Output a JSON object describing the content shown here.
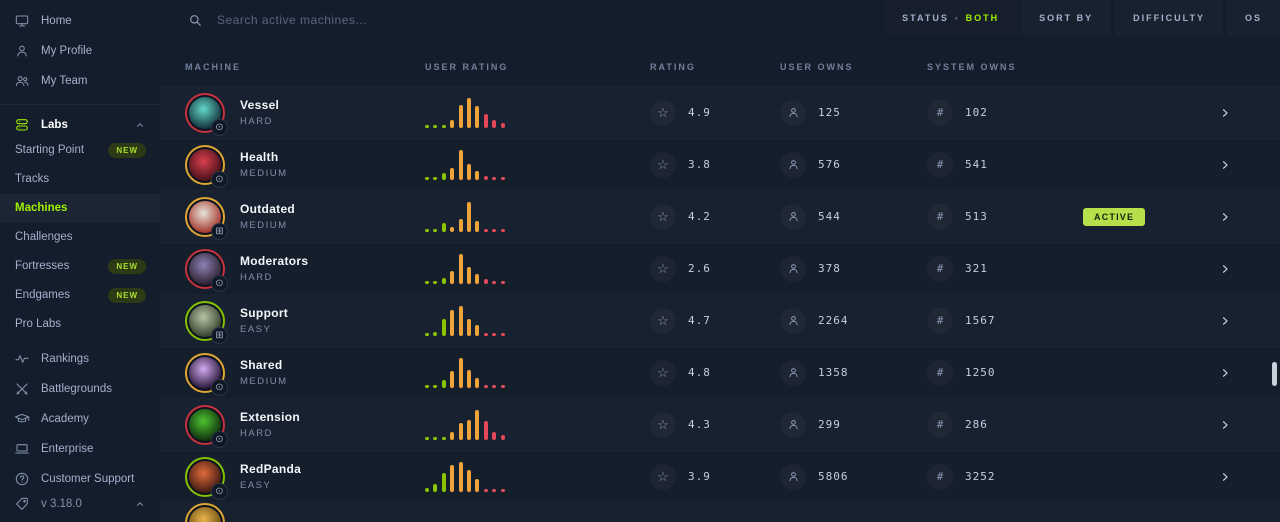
{
  "colors": {
    "accent_green": "#9fef00",
    "difficulty": {
      "EASY": "#84c100",
      "MEDIUM": "#dea733",
      "HARD": "#c6323e"
    },
    "bars": {
      "g": "#8bc500",
      "y": "#eda53b",
      "r": "#e2485a"
    },
    "active_badge_bg": "#b5e04a"
  },
  "sidebar": {
    "top_items": [
      {
        "name": "home",
        "label": "Home",
        "icon": "monitor"
      },
      {
        "name": "my-profile",
        "label": "My Profile",
        "icon": "user"
      },
      {
        "name": "my-team",
        "label": "My Team",
        "icon": "users"
      }
    ],
    "labs": {
      "label": "Labs",
      "icon": "labs"
    },
    "labs_items": [
      {
        "name": "starting-point",
        "label": "Starting Point",
        "badge": "NEW"
      },
      {
        "name": "tracks",
        "label": "Tracks"
      },
      {
        "name": "machines",
        "label": "Machines",
        "active": true
      },
      {
        "name": "challenges",
        "label": "Challenges"
      },
      {
        "name": "fortresses",
        "label": "Fortresses",
        "badge": "NEW"
      },
      {
        "name": "endgames",
        "label": "Endgames",
        "badge": "NEW"
      },
      {
        "name": "pro-labs",
        "label": "Pro Labs"
      }
    ],
    "bottom_items": [
      {
        "name": "rankings",
        "label": "Rankings",
        "icon": "pulse"
      },
      {
        "name": "battlegrounds",
        "label": "Battlegrounds",
        "icon": "swords"
      },
      {
        "name": "academy",
        "label": "Academy",
        "icon": "cap"
      },
      {
        "name": "enterprise",
        "label": "Enterprise",
        "icon": "laptop"
      },
      {
        "name": "customer-support",
        "label": "Customer Support",
        "icon": "help"
      }
    ],
    "version": {
      "label": "v 3.18.0",
      "icon": "tag"
    }
  },
  "topbar": {
    "search_placeholder": "Search active machines...",
    "filters": [
      {
        "name": "status",
        "label": "STATUS",
        "separator": "•",
        "value": "BOTH"
      },
      {
        "name": "sort-by",
        "label": "SORT BY"
      },
      {
        "name": "difficulty",
        "label": "DIFFICULTY"
      },
      {
        "name": "os",
        "label": "OS"
      }
    ]
  },
  "table": {
    "headers": [
      "MACHINE",
      "USER RATING",
      "RATING",
      "USER OWNS",
      "SYSTEM OWNS"
    ],
    "rows": [
      {
        "name": "Vessel",
        "difficulty": "HARD",
        "rating": "4.9",
        "user_owns": "125",
        "system_owns": "102",
        "os": "other",
        "avatar": [
          "#63d8c8",
          "#11303c"
        ],
        "bars": [
          [
            6,
            "g"
          ],
          [
            6,
            "g"
          ],
          [
            10,
            "g"
          ],
          [
            26,
            "y"
          ],
          [
            78,
            "y"
          ],
          [
            100,
            "y"
          ],
          [
            72,
            "y"
          ],
          [
            46,
            "r"
          ],
          [
            26,
            "r"
          ],
          [
            18,
            "r"
          ]
        ]
      },
      {
        "name": "Health",
        "difficulty": "MEDIUM",
        "rating": "3.8",
        "user_owns": "576",
        "system_owns": "541",
        "os": "other",
        "avatar": [
          "#d8404e",
          "#461018"
        ],
        "bars": [
          [
            6,
            "g"
          ],
          [
            6,
            "g"
          ],
          [
            22,
            "g"
          ],
          [
            40,
            "y"
          ],
          [
            100,
            "y"
          ],
          [
            52,
            "y"
          ],
          [
            30,
            "y"
          ],
          [
            12,
            "r"
          ],
          [
            6,
            "r"
          ],
          [
            10,
            "r"
          ]
        ]
      },
      {
        "name": "Outdated",
        "difficulty": "MEDIUM",
        "rating": "4.2",
        "user_owns": "544",
        "system_owns": "513",
        "status": "ACTIVE",
        "os": "windows",
        "avatar": [
          "#e8e4da",
          "#a33428"
        ],
        "bars": [
          [
            6,
            "g"
          ],
          [
            6,
            "g"
          ],
          [
            30,
            "g"
          ],
          [
            18,
            "y"
          ],
          [
            42,
            "y"
          ],
          [
            100,
            "y"
          ],
          [
            38,
            "y"
          ],
          [
            10,
            "r"
          ],
          [
            6,
            "r"
          ],
          [
            6,
            "r"
          ]
        ]
      },
      {
        "name": "Moderators",
        "difficulty": "HARD",
        "rating": "2.6",
        "user_owns": "378",
        "system_owns": "321",
        "os": "other",
        "avatar": [
          "#8d81b5",
          "#2c2030"
        ],
        "bars": [
          [
            6,
            "g"
          ],
          [
            6,
            "g"
          ],
          [
            20,
            "g"
          ],
          [
            42,
            "y"
          ],
          [
            100,
            "y"
          ],
          [
            55,
            "y"
          ],
          [
            32,
            "y"
          ],
          [
            16,
            "r"
          ],
          [
            8,
            "r"
          ],
          [
            6,
            "r"
          ]
        ]
      },
      {
        "name": "Support",
        "difficulty": "EASY",
        "rating": "4.7",
        "user_owns": "2264",
        "system_owns": "1567",
        "os": "windows",
        "avatar": [
          "#b9c4a6",
          "#33402c"
        ],
        "bars": [
          [
            8,
            "g"
          ],
          [
            14,
            "g"
          ],
          [
            55,
            "g"
          ],
          [
            88,
            "y"
          ],
          [
            100,
            "y"
          ],
          [
            58,
            "y"
          ],
          [
            38,
            "y"
          ],
          [
            10,
            "r"
          ],
          [
            6,
            "r"
          ],
          [
            6,
            "r"
          ]
        ]
      },
      {
        "name": "Shared",
        "difficulty": "MEDIUM",
        "rating": "4.8",
        "user_owns": "1358",
        "system_owns": "1250",
        "os": "other",
        "avatar": [
          "#d3a9ef",
          "#241536"
        ],
        "bars": [
          [
            6,
            "g"
          ],
          [
            6,
            "g"
          ],
          [
            28,
            "g"
          ],
          [
            55,
            "y"
          ],
          [
            100,
            "y"
          ],
          [
            60,
            "y"
          ],
          [
            33,
            "y"
          ],
          [
            8,
            "r"
          ],
          [
            6,
            "r"
          ],
          [
            6,
            "r"
          ]
        ]
      },
      {
        "name": "Extension",
        "difficulty": "HARD",
        "rating": "4.3",
        "user_owns": "299",
        "system_owns": "286",
        "os": "other",
        "avatar": [
          "#4ec22f",
          "#0f2e10"
        ],
        "bars": [
          [
            10,
            "g"
          ],
          [
            6,
            "g"
          ],
          [
            8,
            "g"
          ],
          [
            28,
            "y"
          ],
          [
            58,
            "y"
          ],
          [
            68,
            "y"
          ],
          [
            100,
            "y"
          ],
          [
            62,
            "r"
          ],
          [
            28,
            "r"
          ],
          [
            18,
            "r"
          ]
        ]
      },
      {
        "name": "RedPanda",
        "difficulty": "EASY",
        "rating": "3.9",
        "user_owns": "5806",
        "system_owns": "3252",
        "os": "other",
        "avatar": [
          "#e06a3a",
          "#3c1a12"
        ],
        "bars": [
          [
            14,
            "g"
          ],
          [
            26,
            "g"
          ],
          [
            62,
            "g"
          ],
          [
            90,
            "y"
          ],
          [
            100,
            "y"
          ],
          [
            72,
            "y"
          ],
          [
            44,
            "y"
          ],
          [
            10,
            "r"
          ],
          [
            6,
            "r"
          ],
          [
            6,
            "r"
          ]
        ]
      },
      {
        "partial": true,
        "difficulty": "MEDIUM",
        "avatar": [
          "#e8b54a",
          "#6b4a14"
        ],
        "bars": [
          [
            40,
            "g"
          ]
        ]
      }
    ]
  }
}
